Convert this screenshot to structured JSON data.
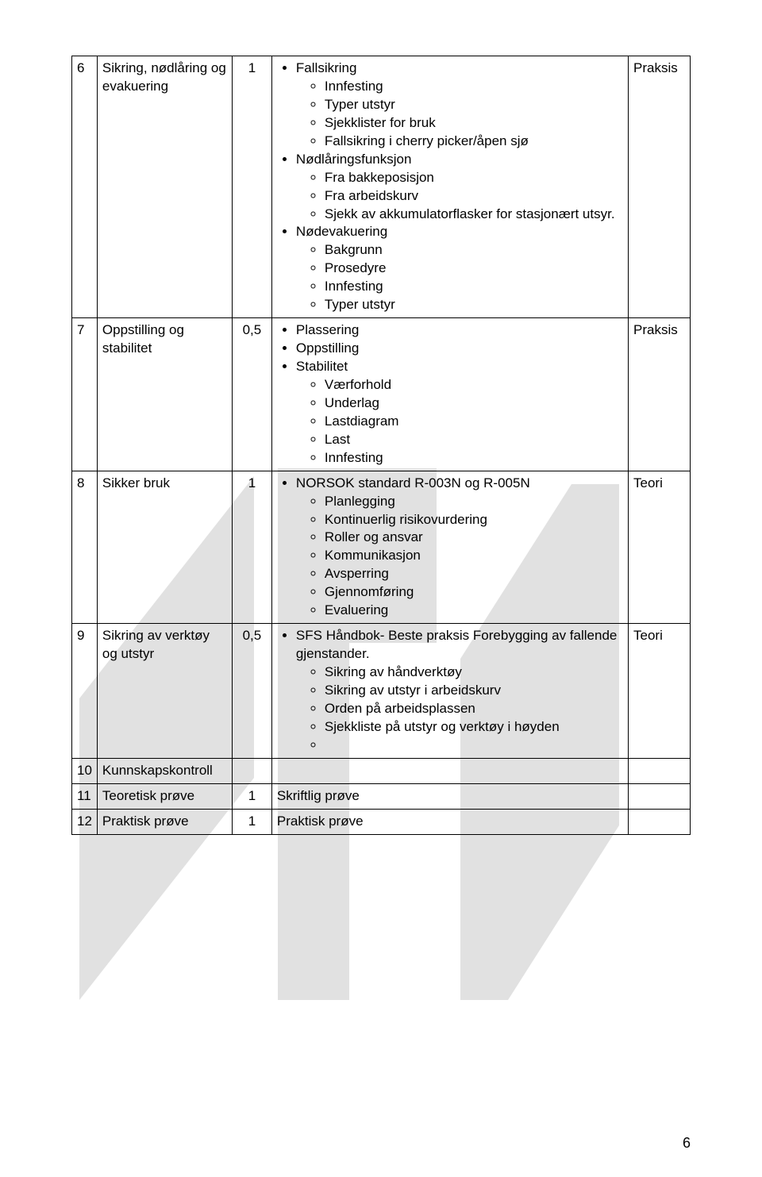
{
  "watermark": {
    "fill": "#dcdcdc",
    "opacity": 0.85
  },
  "rows": [
    {
      "num": "6",
      "topic": "Sikring, nødlåring og evakuering",
      "dur": "1",
      "type": "Praksis",
      "content": [
        {
          "label": "Fallsikring",
          "sub": [
            "Innfesting",
            "Typer utstyr",
            "Sjekklister for bruk",
            "Fallsikring i cherry picker/åpen sjø"
          ]
        },
        {
          "label": "Nødlåringsfunksjon",
          "sub": [
            "Fra bakkeposisjon",
            "Fra arbeidskurv",
            "Sjekk av akkumulatorflasker for stasjonært utsyr."
          ]
        },
        {
          "label": "Nødevakuering",
          "sub": [
            "Bakgrunn",
            "Prosedyre",
            "Innfesting",
            "Typer utstyr"
          ]
        }
      ]
    },
    {
      "num": "7",
      "topic": "Oppstilling og stabilitet",
      "dur": "0,5",
      "type": "Praksis",
      "content": [
        {
          "label": "Plassering"
        },
        {
          "label": "Oppstilling"
        },
        {
          "label": "Stabilitet",
          "sub": [
            "Værforhold",
            "Underlag",
            "Lastdiagram",
            "Last",
            "Innfesting"
          ]
        }
      ]
    },
    {
      "num": "8",
      "topic": "Sikker bruk",
      "dur": "1",
      "type": "Teori",
      "content": [
        {
          "label": "NORSOK standard R-003N og R-005N",
          "sub": [
            "Planlegging",
            "Kontinuerlig risikovurdering",
            "Roller og ansvar",
            "Kommunikasjon",
            "Avsperring",
            "Gjennomføring",
            "Evaluering"
          ]
        }
      ]
    },
    {
      "num": "9",
      "topic": "Sikring av verktøy og utstyr",
      "dur": "0,5",
      "type": "Teori",
      "content": [
        {
          "label": "SFS Håndbok- Beste praksis Forebygging av fallende gjenstander.",
          "sub": [
            "Sikring av håndverktøy",
            "Sikring av utstyr i arbeidskurv",
            "Orden på arbeidsplassen",
            "Sjekkliste på utstyr og verktøy i høyden",
            ""
          ]
        }
      ]
    },
    {
      "num": "10",
      "topic": "Kunnskapskontroll",
      "dur": "",
      "type": "",
      "content_plain": ""
    },
    {
      "num": "11",
      "topic": "Teoretisk prøve",
      "dur": "1",
      "type": "",
      "content_plain": "Skriftlig prøve"
    },
    {
      "num": "12",
      "topic": "Praktisk prøve",
      "dur": "1",
      "type": "",
      "content_plain": "Praktisk prøve"
    }
  ],
  "page_number": "6"
}
